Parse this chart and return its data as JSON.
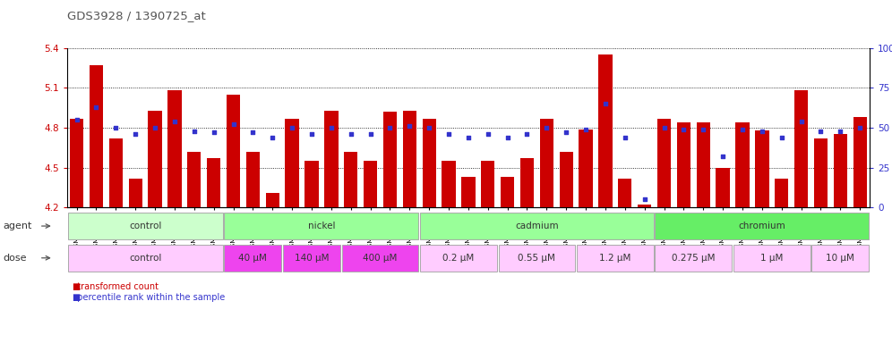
{
  "title": "GDS3928 / 1390725_at",
  "samples": [
    "GSM782280",
    "GSM782281",
    "GSM782291",
    "GSM782292",
    "GSM782303",
    "GSM782313",
    "GSM782314",
    "GSM782282",
    "GSM782293",
    "GSM782304",
    "GSM782315",
    "GSM782283",
    "GSM782305",
    "GSM782316",
    "GSM782284",
    "GSM782295",
    "GSM782306",
    "GSM782317",
    "GSM782288",
    "GSM782299",
    "GSM782310",
    "GSM782321",
    "GSM782289",
    "GSM782300",
    "GSM782311",
    "GSM782322",
    "GSM782290",
    "GSM782301",
    "GSM782312",
    "GSM782323",
    "GSM782285",
    "GSM782296",
    "GSM782307",
    "GSM782318",
    "GSM782286",
    "GSM782297",
    "GSM782308",
    "GSM782319",
    "GSM782298",
    "GSM782309",
    "GSM782320"
  ],
  "bar_values": [
    4.87,
    5.27,
    4.72,
    4.42,
    4.93,
    5.08,
    4.62,
    4.57,
    5.05,
    4.62,
    4.31,
    4.87,
    4.55,
    4.93,
    4.62,
    4.55,
    4.92,
    4.93,
    4.87,
    4.55,
    4.43,
    4.55,
    4.43,
    4.57,
    4.87,
    4.62,
    4.79,
    5.35,
    4.42,
    4.22,
    4.87,
    4.84,
    4.84,
    4.5,
    4.84,
    4.78,
    4.42,
    5.08,
    4.72,
    4.75,
    4.88
  ],
  "percentile_values": [
    55,
    63,
    50,
    46,
    50,
    54,
    48,
    47,
    52,
    47,
    44,
    50,
    46,
    50,
    46,
    46,
    50,
    51,
    50,
    46,
    44,
    46,
    44,
    46,
    50,
    47,
    49,
    65,
    44,
    5,
    50,
    49,
    49,
    32,
    49,
    48,
    44,
    54,
    48,
    48,
    50
  ],
  "ylim_left": [
    4.2,
    5.4
  ],
  "ylim_right": [
    0,
    100
  ],
  "yticks_left": [
    4.2,
    4.5,
    4.8,
    5.1,
    5.4
  ],
  "yticks_right": [
    0,
    25,
    50,
    75,
    100
  ],
  "bar_color": "#cc0000",
  "dot_color": "#3333cc",
  "baseline": 4.2,
  "groups": [
    {
      "label": "control",
      "start": 0,
      "end": 7,
      "color": "#ccffcc"
    },
    {
      "label": "nickel",
      "start": 8,
      "end": 17,
      "color": "#99ff99"
    },
    {
      "label": "cadmium",
      "start": 18,
      "end": 29,
      "color": "#99ff99"
    },
    {
      "label": "chromium",
      "start": 30,
      "end": 40,
      "color": "#66ee66"
    }
  ],
  "doses": [
    {
      "label": "control",
      "start": 0,
      "end": 7,
      "color": "#ffccff"
    },
    {
      "label": "40 μM",
      "start": 8,
      "end": 10,
      "color": "#ee44ee"
    },
    {
      "label": "140 μM",
      "start": 11,
      "end": 13,
      "color": "#ee44ee"
    },
    {
      "label": "400 μM",
      "start": 14,
      "end": 17,
      "color": "#ee44ee"
    },
    {
      "label": "0.2 μM",
      "start": 18,
      "end": 21,
      "color": "#ffccff"
    },
    {
      "label": "0.55 μM",
      "start": 22,
      "end": 25,
      "color": "#ffccff"
    },
    {
      "label": "1.2 μM",
      "start": 26,
      "end": 29,
      "color": "#ffccff"
    },
    {
      "label": "0.275 μM",
      "start": 30,
      "end": 33,
      "color": "#ffccff"
    },
    {
      "label": "1 μM",
      "start": 34,
      "end": 37,
      "color": "#ffccff"
    },
    {
      "label": "10 μM",
      "start": 38,
      "end": 40,
      "color": "#ffccff"
    }
  ],
  "left_axis_color": "#cc0000",
  "right_axis_color": "#3333cc",
  "title_color": "#555555",
  "legend_bar_color": "#cc0000",
  "legend_dot_color": "#3333cc"
}
